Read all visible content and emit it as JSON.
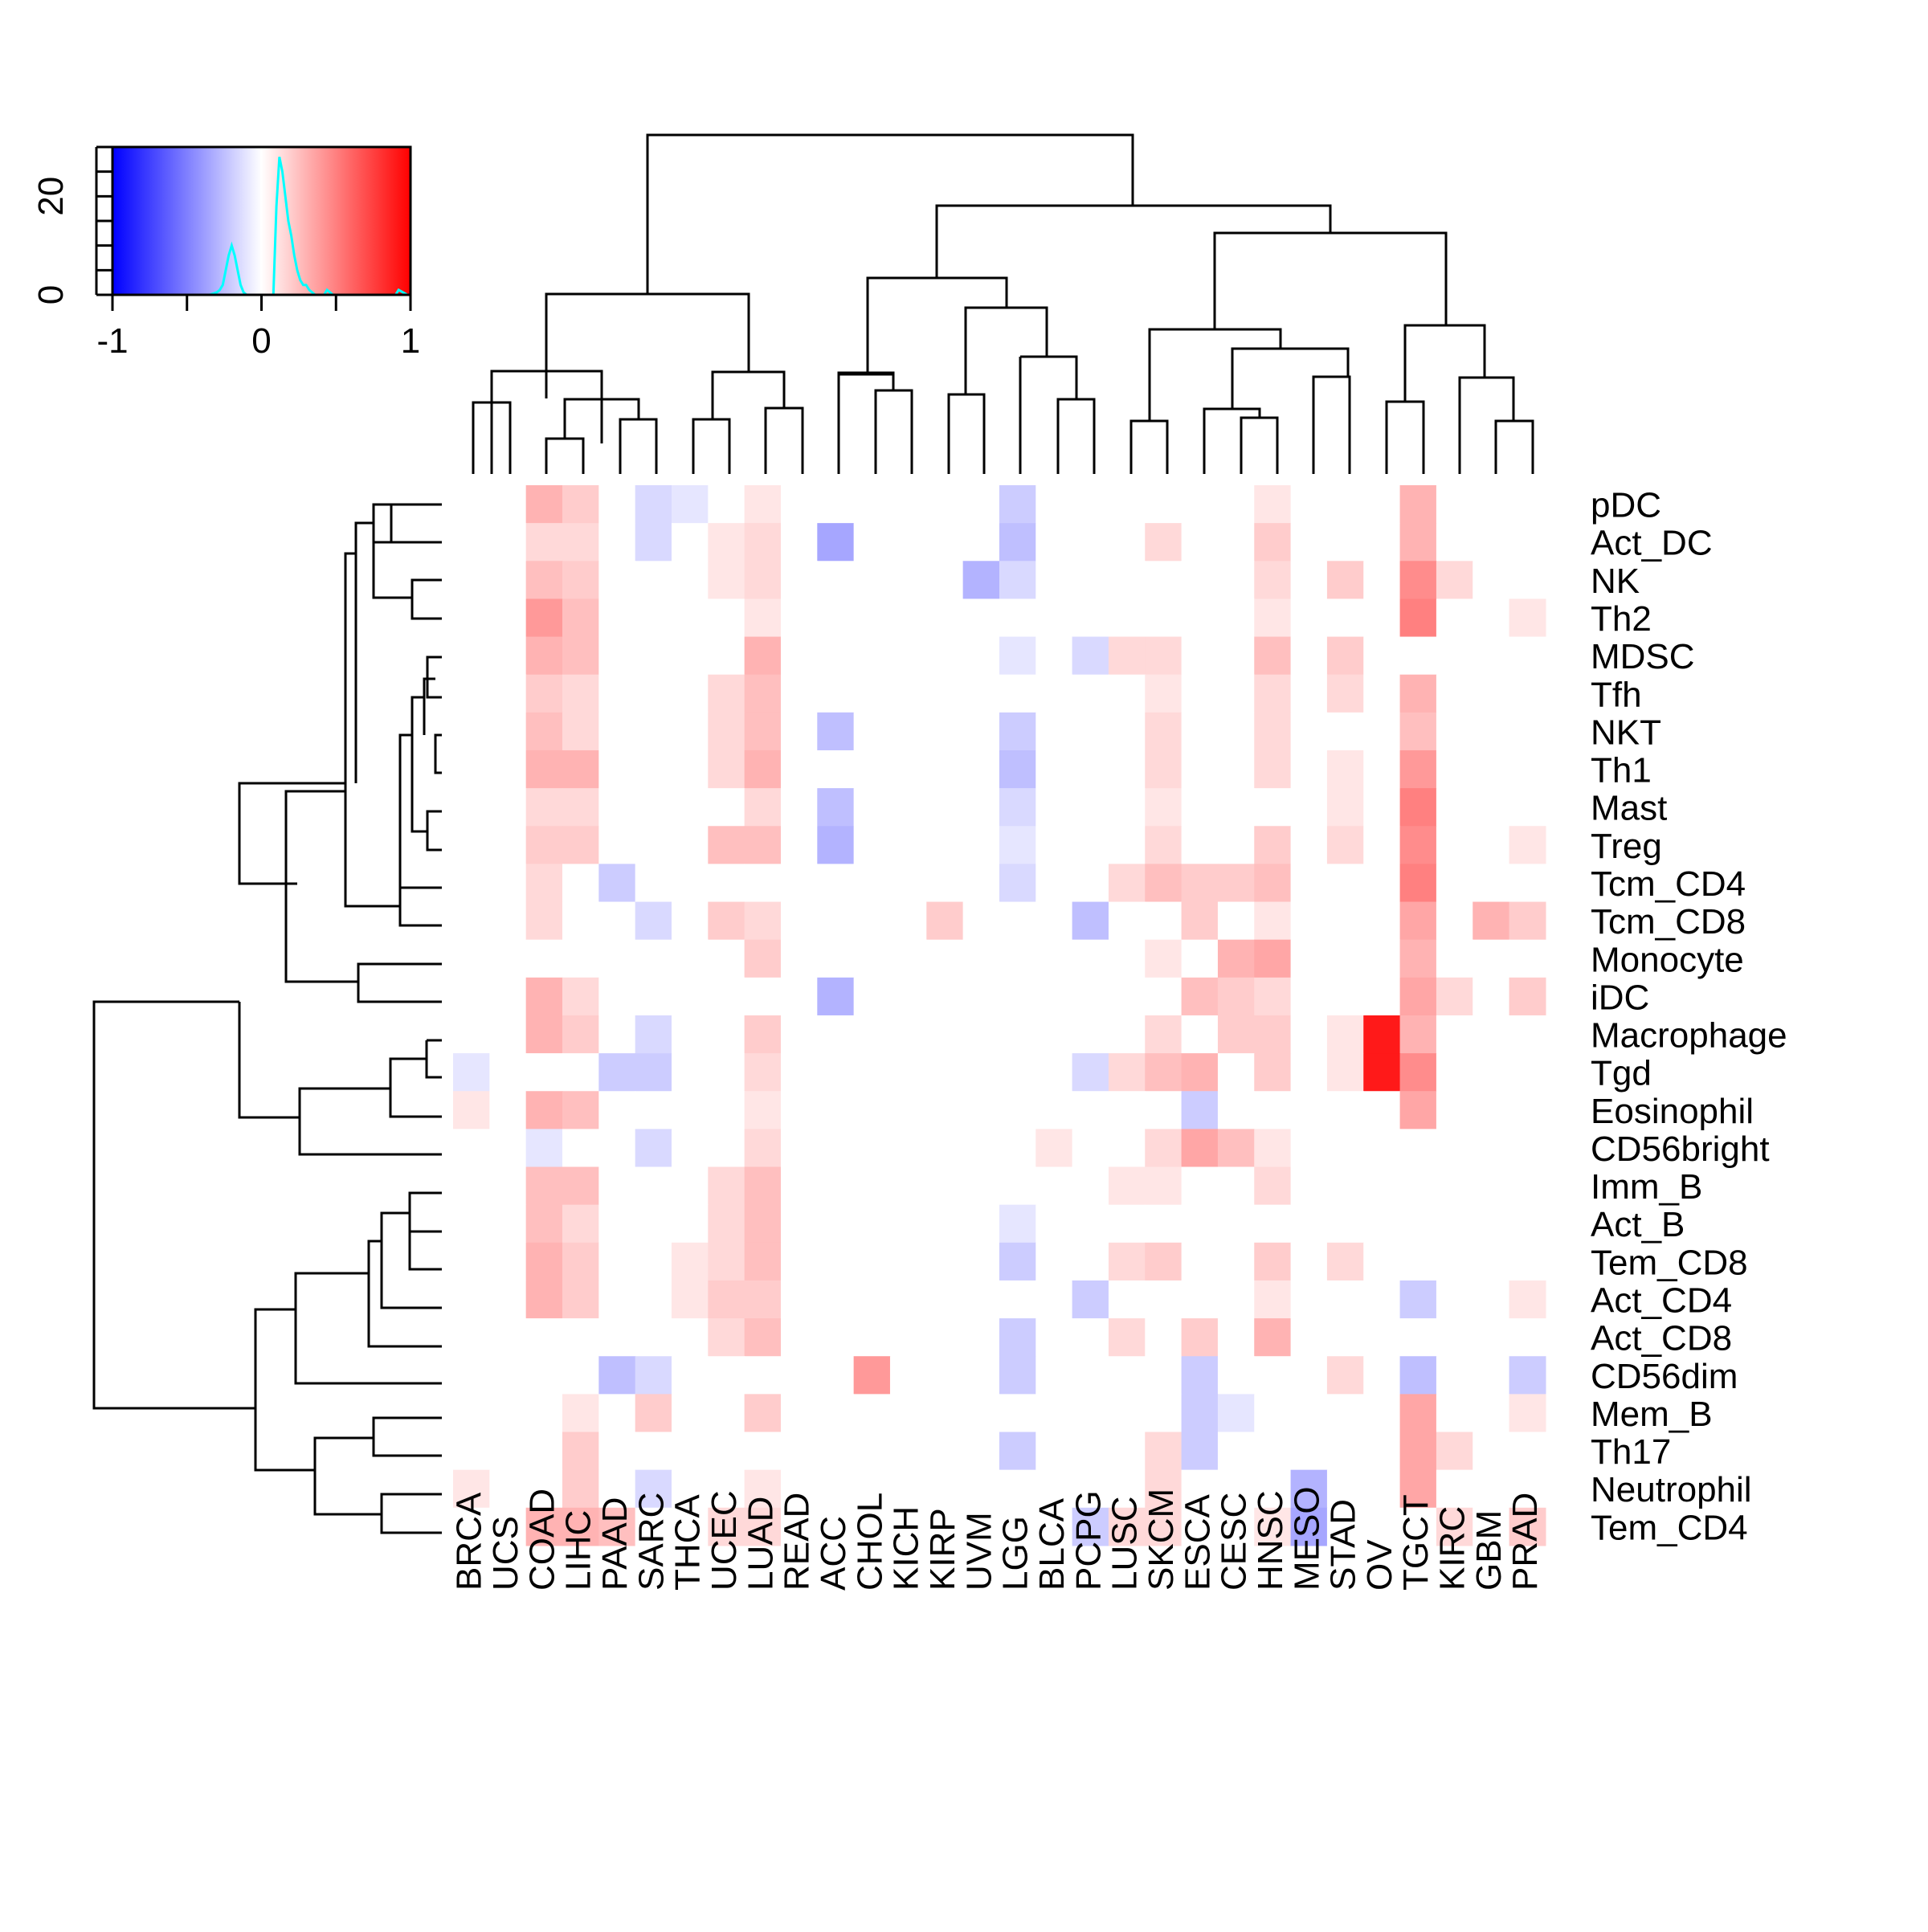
{
  "chart_data": {
    "type": "heatmap",
    "title": "",
    "value_range": [
      -1,
      1
    ],
    "colors": {
      "low": "#0000ff",
      "mid": "#ffffff",
      "high": "#ff0000",
      "histogram": "#00ffff",
      "line": "#000000"
    },
    "columns": [
      "BRCA",
      "UCS",
      "COAD",
      "LIHC",
      "PAAD",
      "SARC",
      "THCA",
      "UCEC",
      "LUAD",
      "READ",
      "ACC",
      "CHOL",
      "KICH",
      "KIRP",
      "UVM",
      "LGG",
      "BLCA",
      "PCPG",
      "LUSC",
      "SKCM",
      "ESCA",
      "CESC",
      "HNSC",
      "MESO",
      "STAD",
      "OV",
      "TGCT",
      "KIRC",
      "GBM",
      "PRAD"
    ],
    "rows": [
      "pDC",
      "Act_DC",
      "NK",
      "Th2",
      "MDSC",
      "Tfh",
      "NKT",
      "Th1",
      "Mast",
      "Treg",
      "Tcm_CD4",
      "Tcm_CD8",
      "Monocyte",
      "iDC",
      "Macrophage",
      "Tgd",
      "Eosinophil",
      "CD56bright",
      "Imm_B",
      "Act_B",
      "Tem_CD8",
      "Act_CD4",
      "Act_CD8",
      "CD56dim",
      "Mem_B",
      "Th17",
      "Neutrophil",
      "Tem_CD4"
    ],
    "values": [
      [
        0,
        0,
        0.3,
        0.2,
        0,
        -0.15,
        -0.1,
        0,
        0.1,
        0,
        0,
        0,
        0,
        0,
        0,
        -0.2,
        0,
        0,
        0,
        0,
        0,
        0,
        0.1,
        0,
        0,
        0,
        0.3,
        0,
        0,
        0
      ],
      [
        0,
        0,
        0.15,
        0.15,
        0,
        -0.15,
        0,
        0.1,
        0.15,
        0,
        -0.35,
        0,
        0,
        0,
        0,
        -0.25,
        0,
        0,
        0,
        0.15,
        0,
        0,
        0.2,
        0,
        0,
        0,
        0.3,
        0,
        0,
        0
      ],
      [
        0,
        0,
        0.25,
        0.2,
        0,
        0,
        0,
        0.1,
        0.15,
        0,
        0,
        0,
        0,
        0,
        -0.3,
        -0.15,
        0,
        0,
        0,
        0,
        0,
        0,
        0.15,
        0,
        0.2,
        0,
        0.45,
        0.15,
        0,
        0
      ],
      [
        0,
        0,
        0.4,
        0.25,
        0,
        0,
        0,
        0,
        0.1,
        0,
        0,
        0,
        0,
        0,
        0,
        0,
        0,
        0,
        0,
        0,
        0,
        0,
        0.1,
        0,
        0,
        0,
        0.5,
        0,
        0,
        0.1
      ],
      [
        0,
        0,
        0.3,
        0.25,
        0,
        0,
        0,
        0,
        0.3,
        0,
        0,
        0,
        0,
        0,
        0,
        -0.1,
        0,
        -0.15,
        0.15,
        0.15,
        0,
        0,
        0.25,
        0,
        0.2,
        0,
        0,
        0,
        0,
        0
      ],
      [
        0,
        0,
        0.2,
        0.15,
        0,
        0,
        0,
        0.15,
        0.25,
        0,
        0,
        0,
        0,
        0,
        0,
        0,
        0,
        0,
        0,
        0.1,
        0,
        0,
        0.15,
        0,
        0.15,
        0,
        0.3,
        0,
        0,
        0
      ],
      [
        0,
        0,
        0.25,
        0.15,
        0,
        0,
        0,
        0.15,
        0.25,
        0,
        -0.25,
        0,
        0,
        0,
        0,
        -0.2,
        0,
        0,
        0,
        0.15,
        0,
        0,
        0.15,
        0,
        0,
        0,
        0.25,
        0,
        0,
        0
      ],
      [
        0,
        0,
        0.3,
        0.3,
        0,
        0,
        0,
        0.15,
        0.3,
        0,
        0,
        0,
        0,
        0,
        0,
        -0.25,
        0,
        0,
        0,
        0.15,
        0,
        0,
        0.15,
        0,
        0.1,
        0,
        0.4,
        0,
        0,
        0
      ],
      [
        0,
        0,
        0.15,
        0.15,
        0,
        0,
        0,
        0,
        0.15,
        0,
        -0.25,
        0,
        0,
        0,
        0,
        -0.15,
        0,
        0,
        0,
        0.1,
        0,
        0,
        0,
        0,
        0.1,
        0,
        0.5,
        0,
        0,
        0
      ],
      [
        0,
        0,
        0.2,
        0.2,
        0,
        0,
        0,
        0.25,
        0.25,
        0,
        -0.3,
        0,
        0,
        0,
        0,
        -0.1,
        0,
        0,
        0,
        0.15,
        0,
        0,
        0.2,
        0,
        0.15,
        0,
        0.45,
        0,
        0,
        0.1
      ],
      [
        0,
        0,
        0.15,
        0,
        -0.2,
        0,
        0,
        0,
        0,
        0,
        0,
        0,
        0,
        0,
        0,
        -0.15,
        0,
        0,
        0.15,
        0.25,
        0.2,
        0.2,
        0.25,
        0,
        0,
        0,
        0.5,
        0,
        0,
        0
      ],
      [
        0,
        0,
        0.15,
        0,
        0,
        -0.15,
        0,
        0.2,
        0.15,
        0,
        0,
        0,
        0,
        0.2,
        0,
        0,
        0,
        -0.25,
        0,
        0,
        0.2,
        0,
        0.1,
        0,
        0,
        0,
        0.35,
        0,
        0.3,
        0.2
      ],
      [
        0,
        0,
        0,
        0,
        0,
        0,
        0,
        0,
        0.2,
        0,
        0,
        0,
        0,
        0,
        0,
        0,
        0,
        0,
        0,
        0.1,
        0,
        0.3,
        0.35,
        0,
        0,
        0,
        0.3,
        0,
        0,
        0
      ],
      [
        0,
        0,
        0.3,
        0.15,
        0,
        0,
        0,
        0,
        0,
        0,
        -0.3,
        0,
        0,
        0,
        0,
        0,
        0,
        0,
        0,
        0,
        0.25,
        0.2,
        0.15,
        0,
        0,
        0,
        0.35,
        0.15,
        0,
        0.2
      ],
      [
        0,
        0,
        0.3,
        0.2,
        0,
        -0.15,
        0,
        0,
        0.2,
        0,
        0,
        0,
        0,
        0,
        0,
        0,
        0,
        0,
        0,
        0.15,
        0,
        0.2,
        0.2,
        0,
        0.1,
        0.9,
        0.3,
        0,
        0,
        0
      ],
      [
        -0.1,
        0,
        0,
        0,
        -0.2,
        -0.2,
        0,
        0,
        0.15,
        0,
        0,
        0,
        0,
        0,
        0,
        0,
        0,
        -0.15,
        0.15,
        0.25,
        0.3,
        0,
        0.2,
        0,
        0.1,
        0.9,
        0.45,
        0,
        0,
        0
      ],
      [
        0.1,
        0,
        0.3,
        0.25,
        0,
        0,
        0,
        0,
        0.1,
        0,
        0,
        0,
        0,
        0,
        0,
        0,
        0,
        0,
        0,
        0,
        -0.2,
        0,
        0,
        0,
        0,
        0,
        0.35,
        0,
        0,
        0
      ],
      [
        0,
        0,
        -0.1,
        0,
        0,
        -0.15,
        0,
        0,
        0.15,
        0,
        0,
        0,
        0,
        0,
        0,
        0,
        0.1,
        0,
        0,
        0.15,
        0.35,
        0.25,
        0.1,
        0,
        0,
        0,
        0,
        0,
        0,
        0
      ],
      [
        0,
        0,
        0.25,
        0.25,
        0,
        0,
        0,
        0.15,
        0.25,
        0,
        0,
        0,
        0,
        0,
        0,
        0,
        0,
        0,
        0.1,
        0.1,
        0,
        0,
        0.15,
        0,
        0,
        0,
        0,
        0,
        0,
        0
      ],
      [
        0,
        0,
        0.25,
        0.15,
        0,
        0,
        0,
        0.15,
        0.25,
        0,
        0,
        0,
        0,
        0,
        0,
        -0.1,
        0,
        0,
        0,
        0,
        0,
        0,
        0,
        0,
        0,
        0,
        0,
        0,
        0,
        0
      ],
      [
        0,
        0,
        0.3,
        0.2,
        0,
        0,
        0.1,
        0.15,
        0.25,
        0,
        0,
        0,
        0,
        0,
        0,
        -0.2,
        0,
        0,
        0.15,
        0.2,
        0,
        0,
        0.2,
        0,
        0.15,
        0,
        0,
        0,
        0,
        0
      ],
      [
        0,
        0,
        0.3,
        0.2,
        0,
        0,
        0.1,
        0.2,
        0.2,
        0,
        0,
        0,
        0,
        0,
        0,
        0,
        0,
        -0.2,
        0,
        0,
        0,
        0,
        0.1,
        0,
        0,
        0,
        -0.2,
        0,
        0,
        0.1
      ],
      [
        0,
        0,
        0,
        0,
        0,
        0,
        0,
        0.15,
        0.25,
        0,
        0,
        0,
        0,
        0,
        0,
        -0.2,
        0,
        0,
        0.15,
        0,
        0.2,
        0,
        0.3,
        0,
        0,
        0,
        0,
        0,
        0,
        0
      ],
      [
        0,
        0,
        0,
        0,
        -0.25,
        -0.15,
        0,
        0,
        0,
        0,
        0,
        0.4,
        0,
        0,
        0,
        -0.2,
        0,
        0,
        0,
        0,
        -0.2,
        0,
        0,
        0,
        0.15,
        0,
        -0.25,
        0,
        0,
        -0.2
      ],
      [
        0,
        0,
        0,
        0.1,
        0,
        0.2,
        0,
        0,
        0.2,
        0,
        0,
        0,
        0,
        0,
        0,
        0,
        0,
        0,
        0,
        0,
        -0.2,
        -0.1,
        0,
        0,
        0,
        0,
        0.35,
        0,
        0,
        0.1
      ],
      [
        0,
        0,
        0,
        0.2,
        0,
        0,
        0,
        0,
        0,
        0,
        0,
        0,
        0,
        0,
        0,
        -0.2,
        0,
        0,
        0,
        0.15,
        -0.2,
        0,
        0,
        0,
        0,
        0,
        0.35,
        0.15,
        0,
        0
      ],
      [
        0.1,
        0,
        0,
        0.2,
        0,
        -0.15,
        0,
        0,
        0.1,
        0,
        0,
        0,
        0,
        0,
        0,
        0,
        0,
        0,
        0,
        0.15,
        0,
        0,
        0,
        -0.3,
        0,
        0,
        0.35,
        0,
        0,
        0
      ],
      [
        0,
        0,
        0.3,
        0.3,
        0.25,
        0,
        0,
        0.15,
        0.15,
        0,
        0,
        0,
        0,
        0,
        0,
        0,
        0,
        -0.2,
        0.15,
        0.15,
        0,
        0,
        0.1,
        -0.35,
        0,
        0,
        0,
        0.15,
        0,
        0.2
      ]
    ],
    "color_key": {
      "xlabel_ticks": [
        "-1",
        "0",
        "1"
      ],
      "xticks": [
        -1,
        -0.5,
        0,
        0.5,
        1
      ],
      "ylabel_ticks": [
        "0",
        "20"
      ],
      "yticks": [
        0,
        5,
        10,
        15,
        20,
        25,
        30
      ],
      "ylim": [
        0,
        30
      ],
      "histogram": [
        [
          -0.35,
          0
        ],
        [
          -0.3,
          0.5
        ],
        [
          -0.28,
          1
        ],
        [
          -0.26,
          2
        ],
        [
          -0.24,
          5
        ],
        [
          -0.22,
          8
        ],
        [
          -0.2,
          10
        ],
        [
          -0.18,
          8
        ],
        [
          -0.16,
          5
        ],
        [
          -0.14,
          2
        ],
        [
          -0.12,
          0.5
        ],
        [
          -0.1,
          0
        ],
        [
          0.08,
          0
        ],
        [
          0.1,
          18
        ],
        [
          0.12,
          28
        ],
        [
          0.14,
          25
        ],
        [
          0.16,
          20
        ],
        [
          0.18,
          15
        ],
        [
          0.2,
          12
        ],
        [
          0.22,
          8
        ],
        [
          0.24,
          5
        ],
        [
          0.26,
          3
        ],
        [
          0.28,
          2
        ],
        [
          0.3,
          2
        ],
        [
          0.32,
          1
        ],
        [
          0.34,
          0.5
        ],
        [
          0.36,
          0
        ],
        [
          0.42,
          0
        ],
        [
          0.44,
          1
        ],
        [
          0.46,
          0.5
        ],
        [
          0.48,
          0
        ],
        [
          0.9,
          0
        ],
        [
          0.92,
          1
        ],
        [
          0.95,
          0.5
        ],
        [
          0.98,
          0
        ]
      ]
    }
  }
}
